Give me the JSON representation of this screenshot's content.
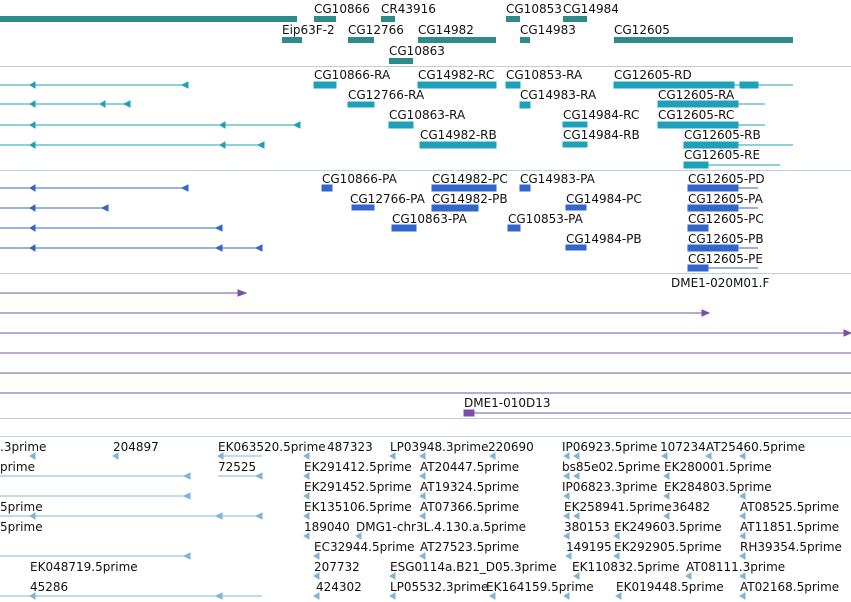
{
  "colors": {
    "genes": "#2e8b8b",
    "transcripts_rna": "#1ea0b8",
    "transcripts_protein": "#3366cc",
    "cdna": "#7b4fa8",
    "ests": "#7fb4d8",
    "separator": "#bfcfd4"
  },
  "tracks": {
    "genes": {
      "labels": [
        "CG10866",
        "CR43916",
        "CG10853",
        "CG14984",
        "Eip63F-2",
        "CG12766",
        "CG14982",
        "CG14983",
        "CG12605",
        "CG10863"
      ]
    },
    "transcripts_ra": {
      "labels": [
        "CG10866-RA",
        "CG14982-RC",
        "CG10853-RA",
        "CG12605-RD",
        "CG12766-RA",
        "CG14983-RA",
        "CG12605-RA",
        "CG10863-RA",
        "CG14984-RC",
        "CG12605-RC",
        "CG14982-RB",
        "CG14984-RB",
        "CG12605-RB",
        "CG12605-RE"
      ]
    },
    "transcripts_pa": {
      "labels": [
        "CG10866-PA",
        "CG14982-PC",
        "CG14983-PA",
        "CG12605-PD",
        "CG12766-PA",
        "CG14982-PB",
        "CG14984-PC",
        "CG12605-PA",
        "CG10863-PA",
        "CG10853-PA",
        "CG12605-PC",
        "CG14984-PB",
        "CG12605-PB",
        "CG12605-PE"
      ]
    },
    "cdna": {
      "labels": [
        "DME1-020M01.F",
        "DME1-010D13"
      ]
    },
    "ests": {
      "labels": [
        ".3prime",
        "204897",
        "EK063520.5prime",
        "487323",
        "LP03948.3prime",
        "220690",
        "IP06923.5prime",
        "107234",
        "AT25460.5prime",
        "prime",
        "72525",
        "EK291412.5prime",
        "AT20447.5prime",
        "bs85e02.5prime",
        "EK280001.5prime",
        "EK291452.5prime",
        "AT19324.5prime",
        "IP06823.3prime",
        "EK284803.5prime",
        "5prime",
        "EK135106.5prime",
        "AT07366.5prime",
        "EK258941.5prime",
        "36482",
        "AT08525.5prime",
        "5prime",
        "189040",
        "DMG1-chr3L.4.130.a.5prime",
        "380153",
        "EK249603.5prime",
        "AT11851.5prime",
        "EC32944.5prime",
        "AT27523.5prime",
        "149195",
        "EK292905.5prime",
        "RH39354.5prime",
        "EK048719.5prime",
        "207732",
        "ESG0114a.B21_D05.3prime",
        "EK110832.5prime",
        "AT08111.3prime",
        "45286",
        "424302",
        "LP05532.3prime",
        "EK164159.5prime",
        "EK019448.5prime",
        "AT02168.5prime"
      ]
    }
  }
}
